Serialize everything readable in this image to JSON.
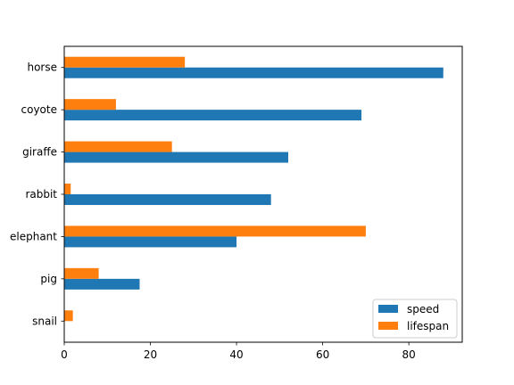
{
  "chart_data": {
    "type": "bar",
    "orientation": "horizontal",
    "categories": [
      "snail",
      "pig",
      "elephant",
      "rabbit",
      "giraffe",
      "coyote",
      "horse"
    ],
    "series": [
      {
        "name": "speed",
        "values": [
          0.1,
          17.5,
          40,
          48,
          52,
          69,
          88
        ],
        "color": "#1f77b4"
      },
      {
        "name": "lifespan",
        "values": [
          2,
          8,
          70,
          1.5,
          25,
          12,
          28
        ],
        "color": "#ff7f0e"
      }
    ],
    "xticks": [
      "0",
      "20",
      "40",
      "60",
      "80"
    ],
    "xlim": [
      0,
      92.4
    ],
    "title": "",
    "xlabel": "",
    "ylabel": "",
    "grid": false,
    "legend": {
      "position": "lower right",
      "labels": [
        "speed",
        "lifespan"
      ]
    }
  }
}
